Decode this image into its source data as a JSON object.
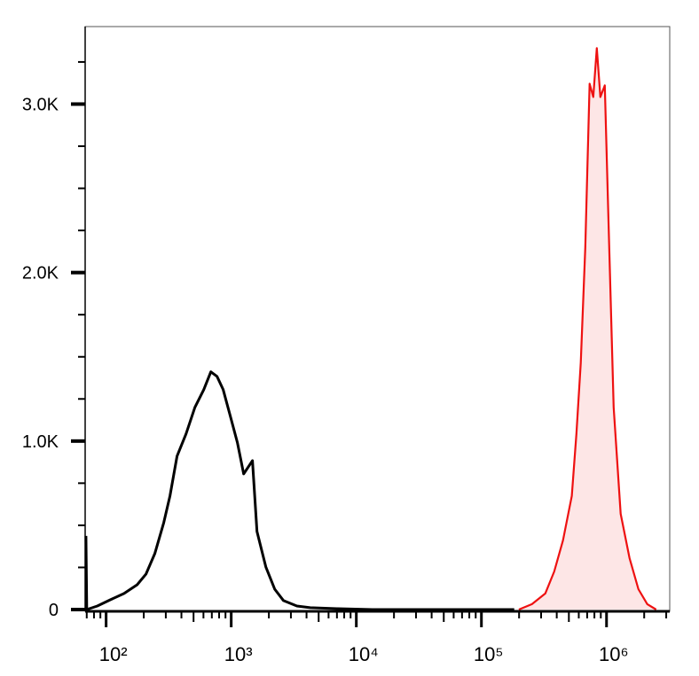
{
  "chart_data": {
    "type": "line",
    "xscale": "log",
    "xlim": [
      68,
      3200000
    ],
    "ylim": [
      0,
      3460
    ],
    "xticks": [
      {
        "value": 100,
        "label": "10²"
      },
      {
        "value": 1000,
        "label": "10³"
      },
      {
        "value": 10000,
        "label": "10⁴"
      },
      {
        "value": 100000,
        "label": "10⁵"
      },
      {
        "value": 1000000,
        "label": "10⁶"
      }
    ],
    "xminorticks": [
      70,
      80,
      90,
      200,
      300,
      400,
      500,
      600,
      700,
      800,
      900,
      2000,
      3000,
      4000,
      5000,
      6000,
      7000,
      8000,
      9000,
      20000,
      30000,
      40000,
      50000,
      60000,
      70000,
      80000,
      90000,
      200000,
      300000,
      400000,
      500000,
      600000,
      700000,
      800000,
      900000,
      2000000,
      3000000
    ],
    "yticks": [
      0,
      {
        "value": 1000,
        "label": "1.0K"
      },
      {
        "value": 2000,
        "label": "2.0K"
      },
      {
        "value": 3000,
        "label": "3.0K"
      }
    ],
    "yminorticks": [
      250,
      500,
      750,
      1250,
      1500,
      1750,
      2250,
      2500,
      2750,
      3250
    ],
    "series": [
      {
        "color": "#000000",
        "fill": null,
        "x": [
          69,
          70,
          85,
          108,
          139,
          177,
          208,
          245,
          289,
          324,
          369,
          435,
          512,
          603,
          687,
          770,
          863,
          984,
          1122,
          1257,
          1479,
          1607,
          1892,
          2228,
          2618,
          3350,
          4276,
          6980,
          13430,
          49500,
          183000
        ],
        "values": [
          437,
          0,
          21,
          58,
          95,
          147,
          210,
          332,
          516,
          674,
          911,
          1042,
          1200,
          1305,
          1411,
          1384,
          1305,
          1147,
          989,
          805,
          884,
          463,
          253,
          121,
          53,
          21,
          11,
          5,
          0,
          0,
          0
        ]
      },
      {
        "color": "#ee1111",
        "fill": "#fde6e6",
        "x": [
          199000,
          253500,
          324000,
          382000,
          449000,
          528000,
          574000,
          622000,
          676000,
          733000,
          783000,
          836000,
          892000,
          968000,
          1033000,
          1140000,
          1298000,
          1528000,
          1799000,
          2118000,
          2494000
        ],
        "values": [
          0,
          32,
          95,
          226,
          411,
          674,
          1042,
          1463,
          2147,
          3121,
          3042,
          3332,
          3042,
          3111,
          2358,
          1200,
          568,
          305,
          121,
          32,
          0
        ]
      }
    ]
  }
}
